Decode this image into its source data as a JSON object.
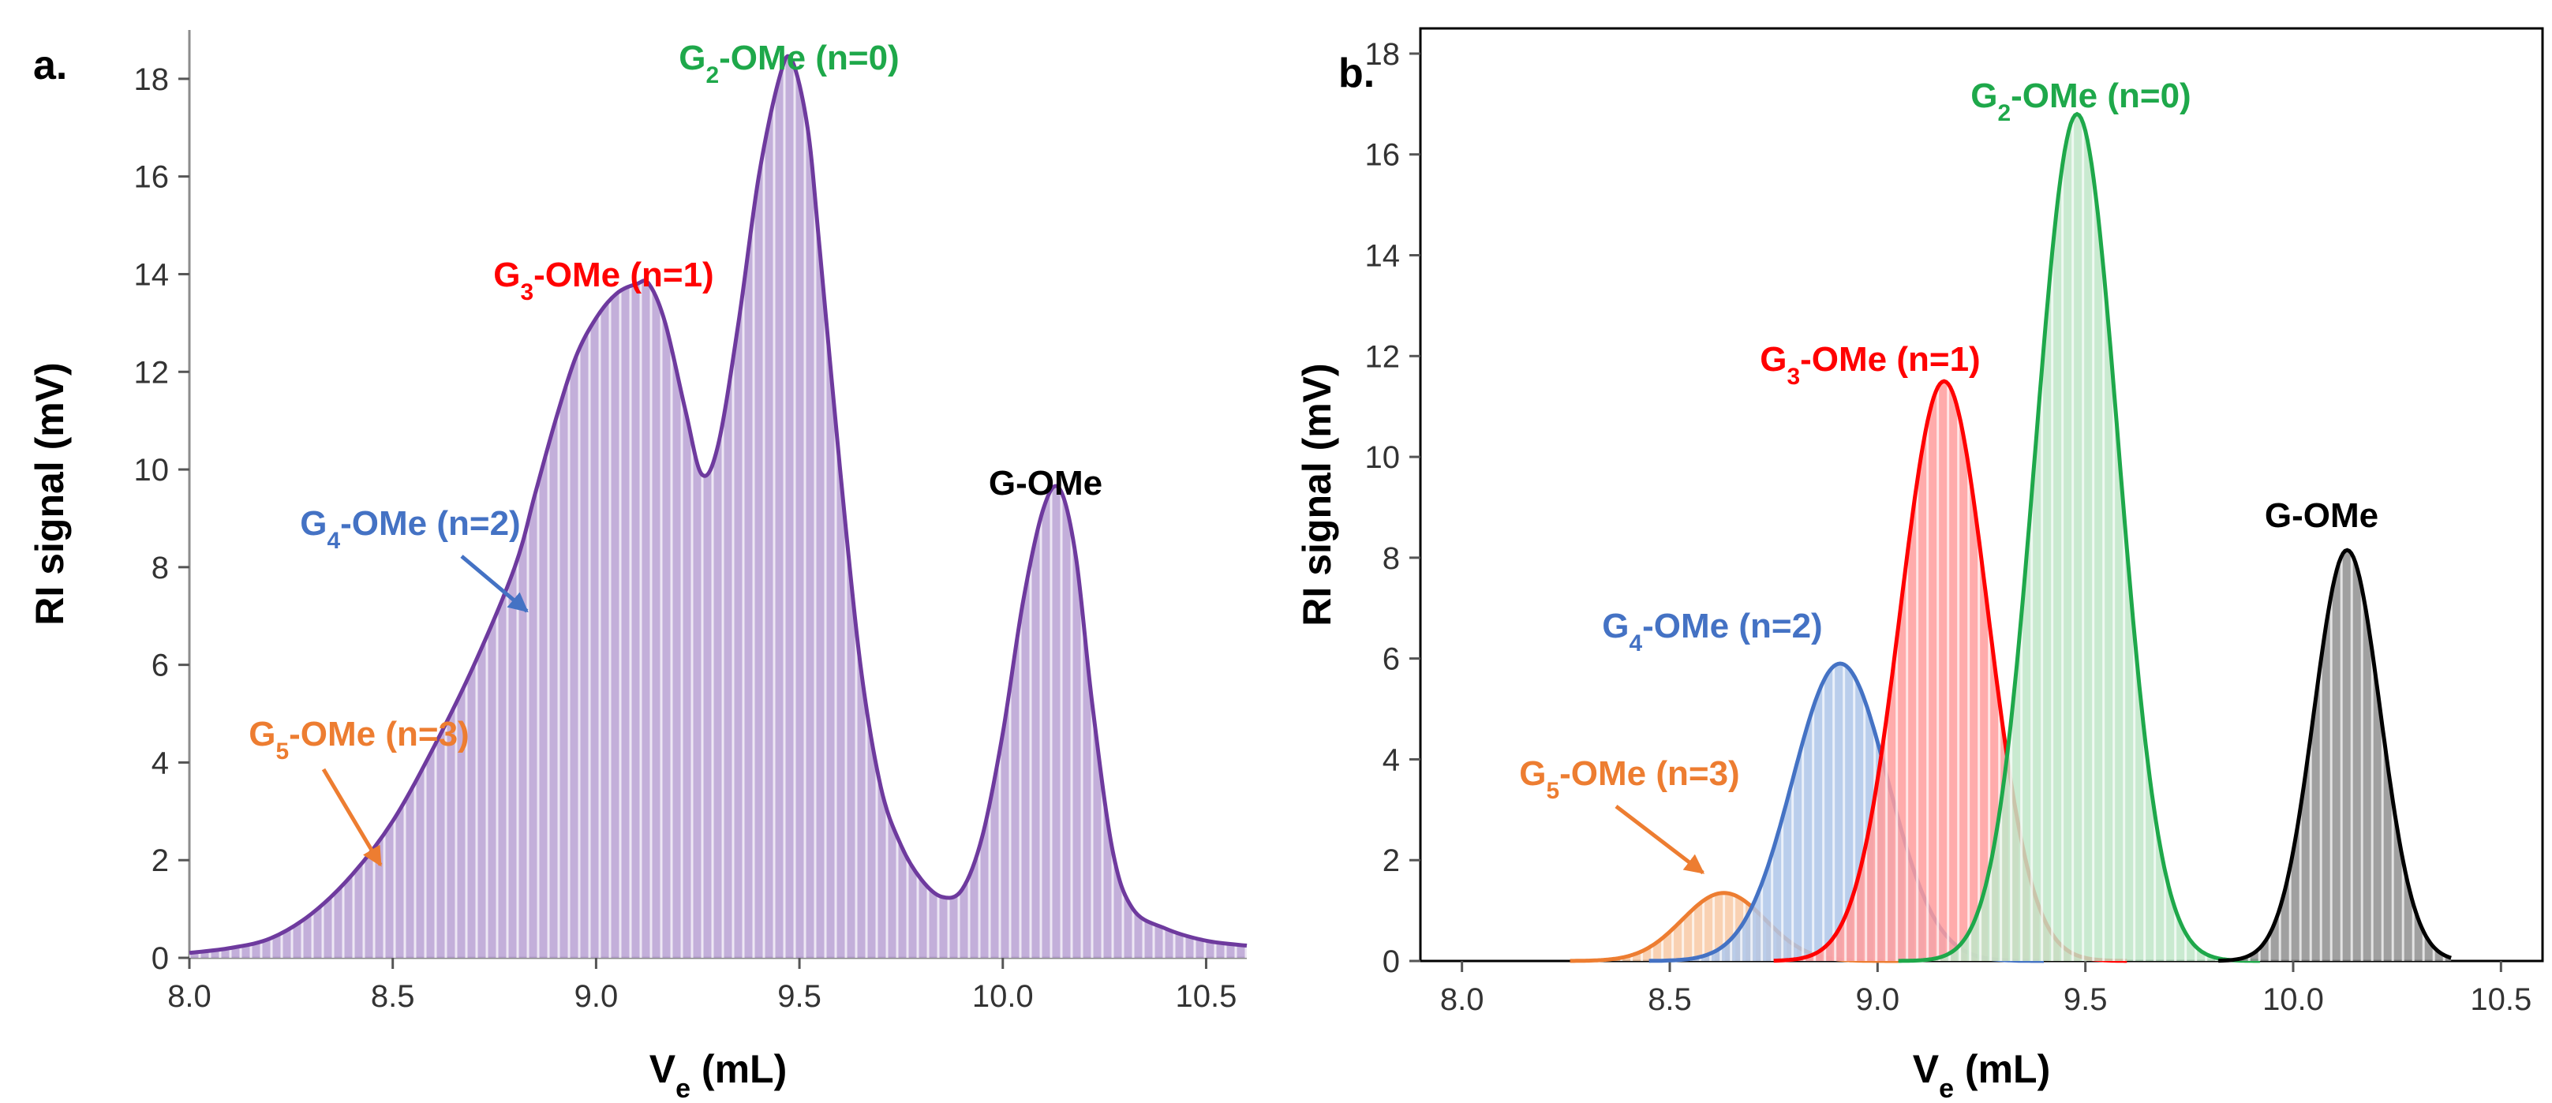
{
  "chart_data": [
    {
      "panel": "a.",
      "type": "area",
      "xlabel": "V",
      "xlabel_sub": "e",
      "xlabel_unit": " (mL)",
      "ylabel": "RI signal (mV)",
      "xlim": [
        8.0,
        10.6
      ],
      "ylim": [
        0,
        19
      ],
      "xticks": [
        "8.0",
        "8.5",
        "9.0",
        "9.5",
        "10.0",
        "10.5"
      ],
      "yticks": [
        "0",
        "2",
        "4",
        "6",
        "8",
        "10",
        "12",
        "14",
        "16",
        "18"
      ],
      "fill_color": "#B9A1D4",
      "line_color": "#6E3A9E",
      "x": [
        8.0,
        8.1,
        8.2,
        8.3,
        8.4,
        8.5,
        8.6,
        8.7,
        8.8,
        8.85,
        8.9,
        8.95,
        9.0,
        9.05,
        9.1,
        9.13,
        9.17,
        9.22,
        9.26,
        9.3,
        9.35,
        9.4,
        9.45,
        9.48,
        9.52,
        9.55,
        9.6,
        9.65,
        9.7,
        9.75,
        9.8,
        9.85,
        9.9,
        9.95,
        10.0,
        10.05,
        10.1,
        10.14,
        10.18,
        10.22,
        10.27,
        10.32,
        10.4,
        10.5,
        10.6
      ],
      "y": [
        0.1,
        0.2,
        0.4,
        0.9,
        1.7,
        2.8,
        4.3,
        6.0,
        8.0,
        9.5,
        11.0,
        12.3,
        13.1,
        13.6,
        13.8,
        13.8,
        13.0,
        11.2,
        9.9,
        10.5,
        13.0,
        16.0,
        18.0,
        18.4,
        17.0,
        14.5,
        10.0,
        6.0,
        3.5,
        2.3,
        1.6,
        1.25,
        1.4,
        2.5,
        4.6,
        7.3,
        9.2,
        9.6,
        8.2,
        5.2,
        2.2,
        1.0,
        0.6,
        0.35,
        0.25
      ],
      "annotations": [
        {
          "text": "G",
          "sub": "2",
          "rest": "-OMe (n=0)",
          "color": "#1EA84A"
        },
        {
          "text": "G",
          "sub": "3",
          "rest": "-OMe (n=1)",
          "color": "#FF0000"
        },
        {
          "text": "G",
          "sub": "4",
          "rest": "-OMe (n=2)",
          "color": "#4472C4",
          "arrow_to": [
            8.83,
            7.1
          ]
        },
        {
          "text": "G",
          "sub": "5",
          "rest": "-OMe (n=3)",
          "color": "#ED7D31",
          "arrow_to": [
            8.47,
            1.9
          ]
        },
        {
          "text": "G-OMe",
          "sub": "",
          "rest": "",
          "color": "#000000"
        }
      ]
    },
    {
      "panel": "b.",
      "type": "area",
      "xlabel": "V",
      "xlabel_sub": "e",
      "xlabel_unit": " (mL)",
      "ylabel": "RI signal (mV)",
      "xlim": [
        7.9,
        10.6
      ],
      "ylim": [
        0,
        18.5
      ],
      "xticks": [
        "8.0",
        "8.5",
        "9.0",
        "9.5",
        "10.0",
        "10.5"
      ],
      "yticks": [
        "0",
        "2",
        "4",
        "6",
        "8",
        "10",
        "12",
        "14",
        "16",
        "18"
      ],
      "series": [
        {
          "name": "G5-OMe (n=3)",
          "center": 8.63,
          "height": 1.35,
          "sigma": 0.1,
          "range": [
            8.26,
            9.05
          ],
          "line_color": "#ED7D31",
          "fill_color": "#F8C9A4"
        },
        {
          "name": "G4-OMe (n=2)",
          "center": 8.91,
          "height": 5.9,
          "sigma": 0.115,
          "range": [
            8.45,
            9.4
          ],
          "line_color": "#4472C4",
          "fill_color": "#AEC6E9"
        },
        {
          "name": "G3-OMe (n=1)",
          "center": 9.16,
          "height": 11.5,
          "sigma": 0.105,
          "range": [
            8.75,
            9.6
          ],
          "line_color": "#FF0000",
          "fill_color": "#FF9C9C"
        },
        {
          "name": "G2-OMe (n=0)",
          "center": 9.48,
          "height": 16.8,
          "sigma": 0.1,
          "range": [
            9.05,
            9.92
          ],
          "line_color": "#1EA84A",
          "fill_color": "#BFE6C8"
        },
        {
          "name": "G-OMe",
          "center": 10.13,
          "height": 8.15,
          "sigma": 0.08,
          "range": [
            9.82,
            10.38
          ],
          "line_color": "#000000",
          "fill_color": "#8F8F8F"
        }
      ],
      "annotations": [
        {
          "text": "G",
          "sub": "2",
          "rest": "-OMe (n=0)",
          "color": "#1EA84A"
        },
        {
          "text": "G",
          "sub": "3",
          "rest": "-OMe (n=1)",
          "color": "#FF0000"
        },
        {
          "text": "G",
          "sub": "4",
          "rest": "-OMe (n=2)",
          "color": "#4472C4"
        },
        {
          "text": "G",
          "sub": "5",
          "rest": "-OMe (n=3)",
          "color": "#ED7D31",
          "arrow_to": [
            8.58,
            1.75
          ]
        },
        {
          "text": "G-OMe",
          "sub": "",
          "rest": "",
          "color": "#000000"
        }
      ]
    }
  ]
}
